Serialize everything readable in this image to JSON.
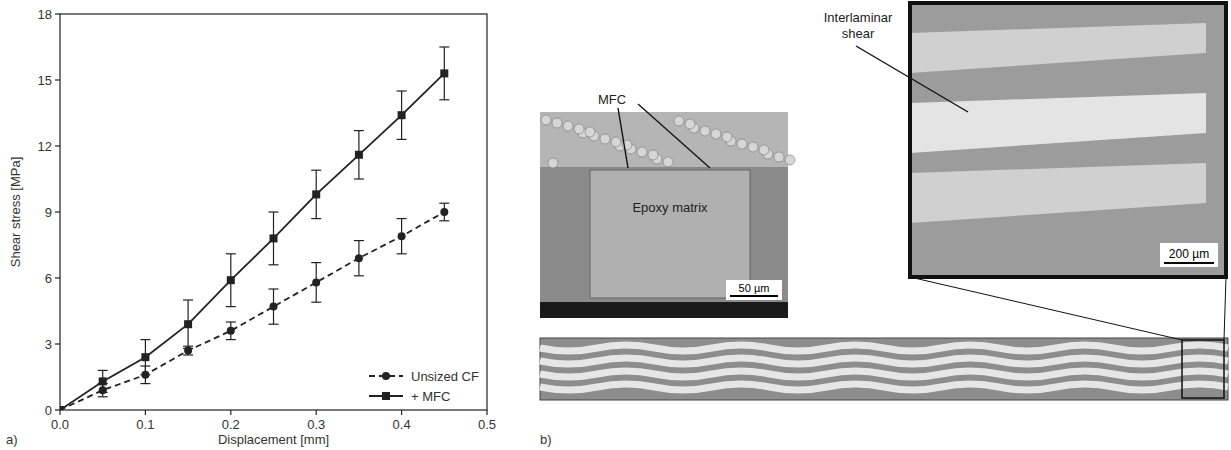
{
  "chart_data": {
    "type": "line",
    "x_label": "Displacement [mm]",
    "y_label": "Shear stress [MPa]",
    "x": [
      0,
      0.05,
      0.1,
      0.15,
      0.2,
      0.25,
      0.3,
      0.35,
      0.4,
      0.45
    ],
    "series": [
      {
        "name": "Unsized CF",
        "color": "#222222",
        "line_style": "dashed",
        "marker": "circle",
        "values": [
          0,
          0.9,
          1.6,
          2.7,
          3.6,
          4.7,
          5.8,
          6.9,
          7.9,
          9.0
        ],
        "errors": [
          0,
          0.3,
          0.4,
          0.2,
          0.4,
          0.8,
          0.9,
          0.8,
          0.8,
          0.4
        ]
      },
      {
        "name": "+ MFC",
        "color": "#222222",
        "line_style": "solid",
        "marker": "square",
        "values": [
          0,
          1.3,
          2.4,
          3.9,
          5.9,
          7.8,
          9.8,
          11.6,
          13.4,
          15.3
        ],
        "errors": [
          0,
          0.5,
          0.8,
          1.1,
          1.2,
          1.2,
          1.1,
          1.1,
          1.1,
          1.2
        ]
      }
    ],
    "xlim": [
      0,
      0.5
    ],
    "xticks": [
      {
        "value": 0,
        "label": "0.0"
      },
      0.1,
      0.2,
      0.3,
      0.4,
      0.5
    ],
    "ylim": [
      0,
      18
    ],
    "yticks": [
      0,
      3,
      6,
      9,
      12,
      15,
      18
    ],
    "legend": "lower right",
    "grid": false
  },
  "panel_labels": [
    "a)",
    "b)"
  ],
  "micrographs": {
    "sem": {
      "labels": [
        "MFC",
        "Epoxy matrix"
      ],
      "scale_bar": "50 µm"
    },
    "optical": {
      "label": "Interlaminar shear",
      "scale_bar": "200 µm"
    }
  }
}
